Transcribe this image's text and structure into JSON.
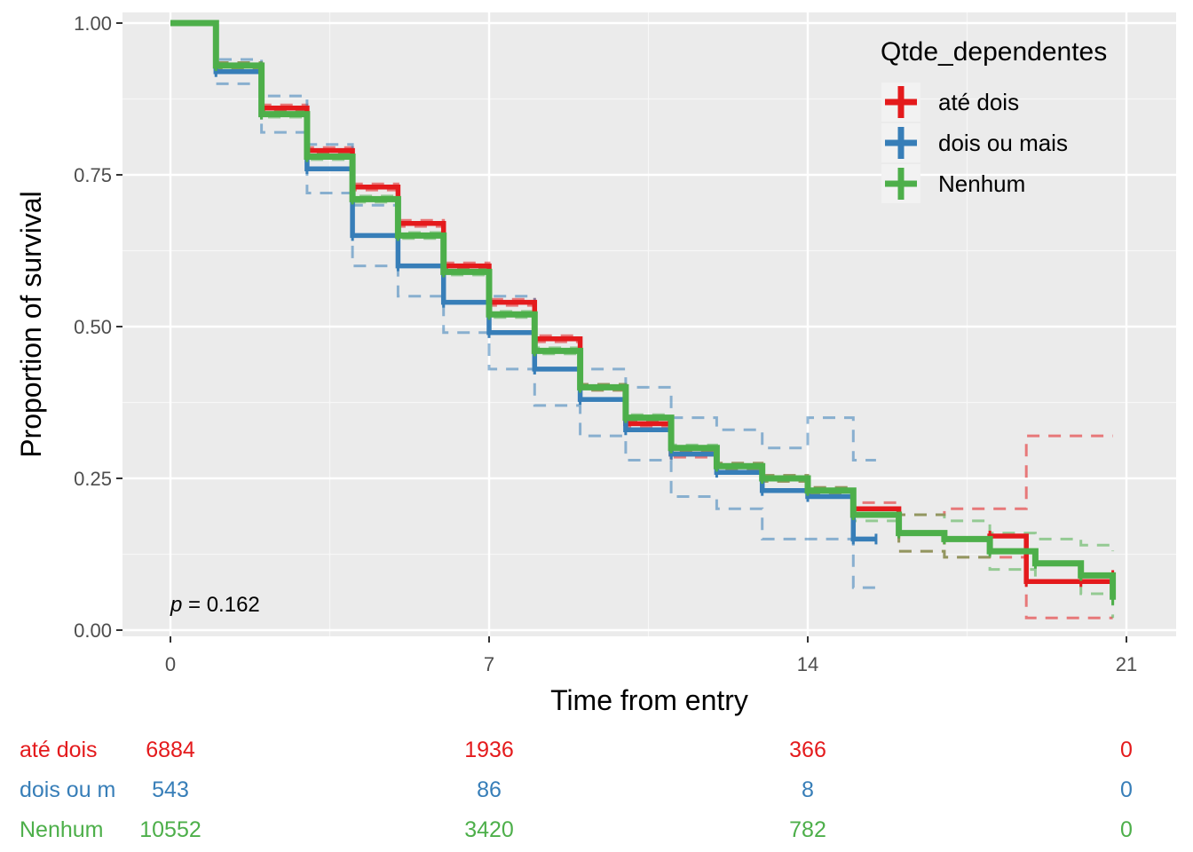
{
  "chart_data": {
    "type": "line",
    "subtype": "kaplan-meier survival curve",
    "xlabel": "Time from entry",
    "ylabel": "Proportion of survival",
    "xlim": [
      0,
      21
    ],
    "ylim": [
      0,
      1
    ],
    "x_ticks": [
      0,
      7,
      14,
      21
    ],
    "y_ticks": [
      0.0,
      0.25,
      0.5,
      0.75,
      1.0
    ],
    "x_tick_labels": [
      "0",
      "7",
      "14",
      "21"
    ],
    "y_tick_labels": [
      "0.00",
      "0.25",
      "0.50",
      "0.75",
      "1.00"
    ],
    "grid": true,
    "legend": {
      "title": "Qtde_dependentes",
      "position": "top-right"
    },
    "annotation": {
      "p_symbol": "p",
      "p_text": " = 0.162"
    },
    "series": [
      {
        "name": "até dois",
        "color": "#E41A1C",
        "x": [
          0,
          1,
          2,
          3,
          4,
          5,
          6,
          7,
          8,
          9,
          10,
          11,
          12,
          13,
          14,
          15,
          16,
          17,
          18,
          18.8,
          20,
          20.7
        ],
        "y": [
          1.0,
          0.93,
          0.86,
          0.79,
          0.73,
          0.67,
          0.6,
          0.54,
          0.48,
          0.4,
          0.34,
          0.29,
          0.27,
          0.25,
          0.23,
          0.2,
          0.16,
          0.15,
          0.155,
          0.08,
          0.08,
          0.09
        ],
        "upper_ci": [
          1.0,
          0.935,
          0.865,
          0.795,
          0.735,
          0.675,
          0.605,
          0.545,
          0.485,
          0.405,
          0.345,
          0.295,
          0.275,
          0.255,
          0.235,
          0.21,
          0.19,
          0.2,
          0.2,
          0.32,
          0.32,
          0.32
        ],
        "lower_ci": [
          1.0,
          0.925,
          0.855,
          0.785,
          0.725,
          0.665,
          0.595,
          0.535,
          0.475,
          0.395,
          0.335,
          0.285,
          0.265,
          0.245,
          0.225,
          0.19,
          0.13,
          0.12,
          0.12,
          0.02,
          0.02,
          0.02
        ]
      },
      {
        "name": "dois ou mais",
        "color": "#377EB8",
        "x": [
          0,
          1,
          2,
          3,
          4,
          5,
          6,
          7,
          8,
          9,
          10,
          11,
          12,
          13,
          14,
          15,
          15.5
        ],
        "y": [
          1.0,
          0.92,
          0.85,
          0.76,
          0.65,
          0.6,
          0.54,
          0.49,
          0.43,
          0.38,
          0.33,
          0.29,
          0.26,
          0.23,
          0.22,
          0.15,
          0.15
        ],
        "upper_ci": [
          1.0,
          0.94,
          0.88,
          0.8,
          0.7,
          0.65,
          0.59,
          0.55,
          0.48,
          0.43,
          0.4,
          0.35,
          0.33,
          0.3,
          0.35,
          0.28,
          0.28
        ],
        "lower_ci": [
          1.0,
          0.9,
          0.82,
          0.72,
          0.6,
          0.55,
          0.49,
          0.43,
          0.37,
          0.32,
          0.28,
          0.22,
          0.2,
          0.15,
          0.15,
          0.07,
          0.07
        ]
      },
      {
        "name": "Nenhum",
        "color": "#4DAF4A",
        "x": [
          0,
          1,
          2,
          3,
          4,
          5,
          6,
          7,
          8,
          9,
          10,
          11,
          12,
          13,
          14,
          15,
          16,
          17,
          18,
          19,
          20,
          20.7
        ],
        "y": [
          1.0,
          0.93,
          0.85,
          0.78,
          0.71,
          0.65,
          0.59,
          0.52,
          0.46,
          0.4,
          0.35,
          0.3,
          0.27,
          0.25,
          0.23,
          0.19,
          0.16,
          0.15,
          0.13,
          0.11,
          0.09,
          0.05
        ],
        "upper_ci": [
          1.0,
          0.935,
          0.855,
          0.785,
          0.715,
          0.655,
          0.595,
          0.525,
          0.465,
          0.405,
          0.355,
          0.305,
          0.275,
          0.255,
          0.235,
          0.2,
          0.19,
          0.18,
          0.16,
          0.15,
          0.14,
          0.13
        ],
        "lower_ci": [
          1.0,
          0.925,
          0.845,
          0.775,
          0.705,
          0.645,
          0.585,
          0.515,
          0.455,
          0.395,
          0.345,
          0.295,
          0.265,
          0.245,
          0.225,
          0.18,
          0.13,
          0.12,
          0.1,
          0.08,
          0.06,
          0.02
        ]
      }
    ],
    "risk_table": {
      "times": [
        0,
        7,
        14,
        21
      ],
      "rows": [
        {
          "label": "até dois",
          "display_label": "até dois",
          "color": "#E41A1C",
          "counts": [
            "6884",
            "1936",
            "366",
            "0"
          ]
        },
        {
          "label": "dois ou mais",
          "display_label": "dois ou m",
          "color": "#377EB8",
          "counts": [
            "543",
            "86",
            "8",
            "0"
          ]
        },
        {
          "label": "Nenhum",
          "display_label": "Nenhum",
          "color": "#4DAF4A",
          "counts": [
            "10552",
            "3420",
            "782",
            "0"
          ]
        }
      ]
    }
  }
}
